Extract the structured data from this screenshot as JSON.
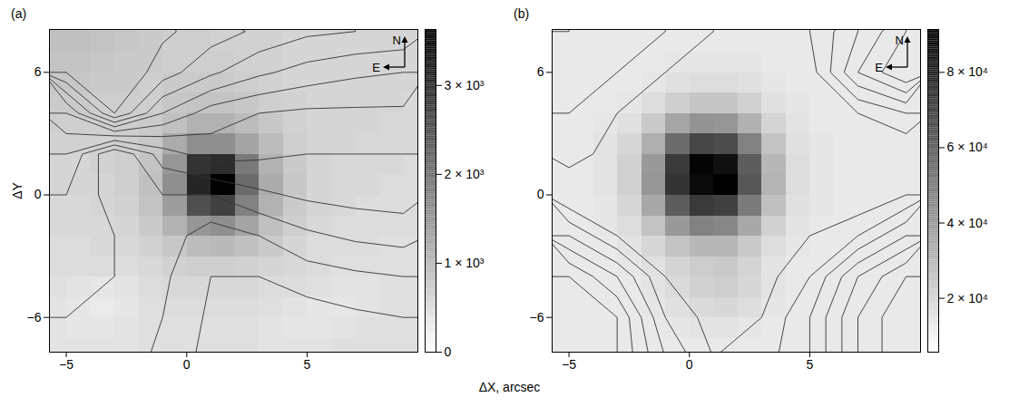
{
  "chart_data": {
    "type": "heatmap",
    "xlabel": "ΔX, arcsec",
    "ylabel": "ΔY",
    "xlim": [
      -5.7,
      9.6
    ],
    "ylim": [
      -7.7,
      8.1
    ],
    "xticks": [
      -5,
      0,
      5
    ],
    "yticks": [
      -6,
      0,
      6
    ],
    "compass": {
      "north": "N",
      "east": "E"
    },
    "panels": [
      {
        "label": "(a)",
        "colorbar": {
          "range": [
            0,
            3630
          ],
          "ticks": [
            0,
            {
              "value": 1000,
              "label": "1 × 10³"
            },
            {
              "value": 2000,
              "label": "2 × 10³"
            },
            {
              "value": 3000,
              "label": "3 × 10³"
            }
          ],
          "colors": [
            "#ffffff",
            "#000000"
          ]
        },
        "cells": {
          "x": [
            -5.5,
            -4.5,
            -3.5,
            -2.5,
            -1.5,
            -0.5,
            0.5,
            1.5,
            2.5,
            3.5,
            4.5,
            5.5,
            6.5,
            7.5,
            8.5,
            9.5
          ],
          "y": [
            8.5,
            7.5,
            6.5,
            5.5,
            4.5,
            3.5,
            2.5,
            1.5,
            0.5,
            -0.5,
            -1.5,
            -2.5,
            -3.5,
            -4.5,
            -5.5,
            -6.5,
            -7.5
          ],
          "values": [
            [
              900,
              900,
              850,
              800,
              750,
              700,
              700,
              650,
              650,
              650,
              600,
              600,
              650,
              600,
              600,
              600
            ],
            [
              900,
              900,
              850,
              800,
              750,
              700,
              700,
              650,
              650,
              650,
              600,
              600,
              600,
              600,
              600,
              600
            ],
            [
              850,
              850,
              800,
              750,
              750,
              700,
              700,
              700,
              650,
              650,
              600,
              600,
              600,
              600,
              600,
              600
            ],
            [
              800,
              800,
              750,
              750,
              700,
              750,
              750,
              750,
              700,
              650,
              600,
              600,
              600,
              600,
              600,
              600
            ],
            [
              750,
              750,
              700,
              700,
              700,
              800,
              850,
              850,
              800,
              700,
              650,
              600,
              600,
              600,
              600,
              550
            ],
            [
              700,
              700,
              700,
              700,
              750,
              900,
              1100,
              1100,
              950,
              800,
              650,
              600,
              600,
              600,
              550,
              550
            ],
            [
              650,
              650,
              650,
              700,
              800,
              1200,
              1600,
              1600,
              1300,
              950,
              700,
              600,
              600,
              550,
              550,
              550
            ],
            [
              600,
              600,
              650,
              700,
              850,
              1500,
              2900,
              3000,
              1900,
              1100,
              750,
              600,
              550,
              550,
              550,
              500
            ],
            [
              600,
              600,
              600,
              700,
              900,
              1600,
              3100,
              3600,
              2100,
              1200,
              800,
              600,
              550,
              550,
              500,
              500
            ],
            [
              550,
              550,
              600,
              650,
              850,
              1400,
              2500,
              2700,
              1800,
              1100,
              750,
              600,
              550,
              500,
              500,
              500
            ],
            [
              550,
              550,
              550,
              600,
              750,
              1100,
              1500,
              1600,
              1300,
              900,
              700,
              550,
              500,
              500,
              500,
              500
            ],
            [
              500,
              500,
              550,
              550,
              650,
              800,
              950,
              1000,
              900,
              750,
              600,
              500,
              500,
              500,
              450,
              450
            ],
            [
              500,
              500,
              500,
              500,
              550,
              650,
              700,
              700,
              650,
              600,
              550,
              500,
              450,
              450,
              450,
              450
            ],
            [
              450,
              400,
              350,
              400,
              500,
              550,
              550,
              550,
              550,
              500,
              500,
              450,
              400,
              400,
              450,
              450
            ],
            [
              400,
              350,
              300,
              350,
              450,
              500,
              500,
              500,
              500,
              450,
              400,
              350,
              350,
              400,
              450,
              450
            ],
            [
              400,
              350,
              350,
              400,
              450,
              450,
              450,
              450,
              450,
              400,
              350,
              350,
              400,
              450,
              450,
              450
            ],
            [
              400,
              400,
              400,
              400,
              450,
              450,
              450,
              450,
              450,
              400,
              400,
              400,
              450,
              450,
              450,
              450
            ]
          ]
        },
        "contours": {
          "color": "#333333",
          "levels": [
            -50,
            -40,
            -30,
            -20,
            -10,
            0,
            10,
            20,
            30,
            40,
            50,
            60
          ],
          "x": [
            -5,
            -3,
            -1,
            1,
            3,
            5,
            7,
            9
          ],
          "y": [
            8,
            6,
            4,
            2,
            0,
            -2,
            -4,
            -6,
            -8
          ],
          "values": [
            [
              70,
              68,
              62,
              55,
              48,
              42,
              40,
              38
            ],
            [
              60,
              70,
              55,
              42,
              32,
              26,
              22,
              20
            ],
            [
              20,
              60,
              30,
              15,
              10,
              8,
              8,
              8
            ],
            [
              0,
              -30,
              -5,
              5,
              2,
              0,
              0,
              0
            ],
            [
              -10,
              -25,
              -20,
              -20,
              -12,
              -8,
              -6,
              -5
            ],
            [
              -15,
              -20,
              -25,
              -35,
              -30,
              -22,
              -18,
              -16
            ],
            [
              -18,
              -20,
              -28,
              -40,
              -40,
              -35,
              -32,
              -30
            ],
            [
              -20,
              -22,
              -30,
              -42,
              -45,
              -45,
              -42,
              -40
            ],
            [
              -22,
              -25,
              -32,
              -44,
              -48,
              -50,
              -50,
              -48
            ]
          ]
        }
      },
      {
        "label": "(b)",
        "colorbar": {
          "range": [
            5700,
            91400
          ],
          "ticks": [
            {
              "value": 20000,
              "label": "2 × 10⁴"
            },
            {
              "value": 40000,
              "label": "4 × 10⁴"
            },
            {
              "value": 60000,
              "label": "6 × 10⁴"
            },
            {
              "value": 80000,
              "label": "8 × 10⁴"
            }
          ],
          "colors": [
            "#ffffff",
            "#000000"
          ]
        },
        "cells": {
          "x": [
            -5.5,
            -4.5,
            -3.5,
            -2.5,
            -1.5,
            -0.5,
            0.5,
            1.5,
            2.5,
            3.5,
            4.5,
            5.5,
            6.5,
            7.5,
            8.5,
            9.5
          ],
          "y": [
            8.5,
            7.5,
            6.5,
            5.5,
            4.5,
            3.5,
            2.5,
            1.5,
            0.5,
            -0.5,
            -1.5,
            -2.5,
            -3.5,
            -4.5,
            -5.5,
            -6.5,
            -7.5
          ],
          "values": [
            [
              13000,
              13000,
              13000,
              13000,
              13000,
              13000,
              13000,
              13000,
              13000,
              13000,
              13000,
              13000,
              13000,
              13000,
              13000,
              13000
            ],
            [
              13000,
              13000,
              13000,
              13000,
              13000,
              13000,
              13000,
              13000,
              13000,
              13000,
              13000,
              13000,
              13000,
              13000,
              13000,
              13000
            ],
            [
              13000,
              13000,
              13000,
              13000,
              13000,
              14000,
              14000,
              14000,
              14000,
              13000,
              13000,
              13000,
              13000,
              13000,
              13000,
              13000
            ],
            [
              13000,
              13000,
              13000,
              13000,
              14000,
              16000,
              17000,
              17000,
              16000,
              14000,
              13000,
              13000,
              13000,
              13000,
              13000,
              13000
            ],
            [
              13000,
              13000,
              13000,
              14000,
              17000,
              22000,
              25000,
              25000,
              21000,
              16000,
              14000,
              13000,
              13000,
              13000,
              13000,
              13000
            ],
            [
              13000,
              13000,
              14000,
              16000,
              24000,
              36000,
              42000,
              41000,
              32000,
              20000,
              15000,
              13000,
              13000,
              13000,
              13000,
              13000
            ],
            [
              13000,
              13000,
              15000,
              19000,
              33000,
              55000,
              68000,
              66000,
              48000,
              26000,
              16000,
              14000,
              13000,
              13000,
              13000,
              13000
            ],
            [
              13000,
              13000,
              15000,
              21000,
              40000,
              72000,
              90000,
              86000,
              60000,
              30000,
              17000,
              14000,
              13000,
              13000,
              13000,
              13000
            ],
            [
              13000,
              13000,
              15000,
              21000,
              41000,
              74000,
              88000,
              91000,
              62000,
              31000,
              17000,
              14000,
              13000,
              13000,
              13000,
              13000
            ],
            [
              13000,
              13000,
              14000,
              19000,
              35000,
              60000,
              72000,
              70000,
              50000,
              27000,
              16000,
              14000,
              13000,
              13000,
              13000,
              13000
            ],
            [
              13000,
              13000,
              14000,
              17000,
              26000,
              40000,
              48000,
              46000,
              35000,
              21000,
              15000,
              13000,
              13000,
              13000,
              13000,
              13000
            ],
            [
              13000,
              13000,
              13000,
              15000,
              19000,
              26000,
              30000,
              30000,
              24000,
              17000,
              14000,
              13000,
              13000,
              13000,
              13000,
              13000
            ],
            [
              13000,
              13000,
              13000,
              14000,
              16000,
              20000,
              23000,
              24000,
              20000,
              15000,
              13000,
              13000,
              13000,
              13000,
              13000,
              13000
            ],
            [
              13000,
              13000,
              13000,
              13000,
              15000,
              18000,
              21000,
              22000,
              19000,
              15000,
              13000,
              13000,
              13000,
              13000,
              13000,
              13000
            ],
            [
              13000,
              13000,
              13000,
              13000,
              14000,
              16000,
              18000,
              19000,
              17000,
              14000,
              13000,
              13000,
              13000,
              13000,
              13000,
              13000
            ],
            [
              13000,
              13000,
              13000,
              13000,
              13000,
              14000,
              15000,
              15000,
              14000,
              13000,
              13000,
              13000,
              13000,
              13000,
              13000,
              13000
            ],
            [
              13000,
              13000,
              13000,
              13000,
              13000,
              13000,
              13000,
              13000,
              13000,
              13000,
              13000,
              13000,
              13000,
              13000,
              13000,
              13000
            ]
          ]
        },
        "contours": {
          "color": "#333333",
          "levels": [
            -70,
            -60,
            -50,
            -40,
            -30,
            -20,
            -10,
            10,
            20,
            30,
            40,
            50
          ],
          "x": [
            -5,
            -3,
            -1,
            1,
            3,
            5,
            7,
            9
          ],
          "y": [
            8,
            6,
            4,
            2,
            0,
            -2,
            -4,
            -6,
            -8
          ],
          "values": [
            [
              30,
              28,
              20,
              10,
              5,
              10,
              30,
              50
            ],
            [
              25,
              20,
              10,
              0,
              0,
              5,
              40,
              60
            ],
            [
              20,
              10,
              0,
              0,
              0,
              0,
              10,
              20
            ],
            [
              15,
              5,
              0,
              0,
              0,
              0,
              0,
              0
            ],
            [
              0,
              0,
              0,
              0,
              0,
              0,
              0,
              -10
            ],
            [
              -30,
              -10,
              0,
              0,
              0,
              -10,
              -20,
              -40
            ],
            [
              -60,
              -40,
              -10,
              0,
              -5,
              -20,
              -50,
              -70
            ],
            [
              -70,
              -60,
              -20,
              -5,
              -10,
              -30,
              -60,
              -80
            ],
            [
              -70,
              -60,
              -30,
              -10,
              -15,
              -30,
              -60,
              -80
            ]
          ]
        }
      }
    ]
  }
}
